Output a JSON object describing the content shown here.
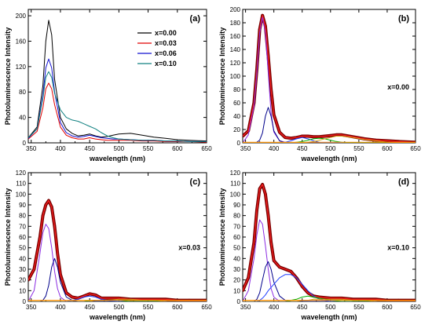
{
  "chart_data": [
    {
      "type": "line",
      "panel_label": "(a)",
      "xlabel": "wavelength (nm)",
      "ylabel": "Photoluminescence Intensity",
      "xlim": [
        345,
        650
      ],
      "ylim": [
        0,
        210
      ],
      "xticks": [
        350,
        400,
        450,
        500,
        550,
        600,
        650
      ],
      "yticks": [
        0,
        40,
        80,
        120,
        160,
        200
      ],
      "legend": "top-right",
      "x": [
        345,
        360,
        370,
        375,
        380,
        385,
        390,
        400,
        410,
        420,
        430,
        440,
        450,
        460,
        470,
        480,
        490,
        500,
        520,
        540,
        560,
        580,
        600,
        620,
        650
      ],
      "series": [
        {
          "name": "x=0.00",
          "color": "#000000",
          "legend": true,
          "values": [
            8,
            25,
            90,
            160,
            193,
            170,
            100,
            40,
            22,
            15,
            11,
            12,
            14,
            11,
            9,
            10,
            12,
            14,
            15,
            12,
            9,
            7,
            5,
            4,
            3
          ]
        },
        {
          "name": "x=0.03",
          "color": "#e00000",
          "legend": true,
          "values": [
            6,
            18,
            55,
            85,
            94,
            85,
            60,
            25,
            12,
            8,
            6,
            6,
            8,
            6,
            5,
            4,
            4,
            4,
            4,
            3,
            3,
            2,
            2,
            2,
            1
          ]
        },
        {
          "name": "x=0.06",
          "color": "#1010d0",
          "legend": true,
          "values": [
            7,
            22,
            75,
            118,
            132,
            118,
            80,
            32,
            16,
            11,
            9,
            10,
            12,
            10,
            8,
            7,
            6,
            6,
            5,
            4,
            4,
            3,
            3,
            2,
            2
          ]
        },
        {
          "name": "x=0.10",
          "color": "#108080",
          "legend": true,
          "values": [
            8,
            22,
            70,
            103,
            112,
            103,
            78,
            52,
            40,
            36,
            34,
            30,
            26,
            22,
            16,
            11,
            8,
            6,
            5,
            4,
            4,
            3,
            3,
            2,
            2
          ]
        }
      ]
    },
    {
      "type": "line",
      "panel_label": "(b)",
      "annotation": "x=0.00",
      "xlabel": "wavelength (nm)",
      "ylabel": "Photoluminescence Intensity",
      "xlim": [
        345,
        650
      ],
      "ylim": [
        0,
        200
      ],
      "xticks": [
        350,
        400,
        450,
        500,
        550,
        600,
        650
      ],
      "yticks": [
        0,
        20,
        40,
        60,
        80,
        100,
        120,
        140,
        160,
        180,
        200
      ],
      "x": [
        345,
        355,
        365,
        370,
        375,
        380,
        385,
        390,
        395,
        400,
        410,
        420,
        430,
        440,
        450,
        460,
        470,
        480,
        490,
        500,
        510,
        520,
        540,
        560,
        580,
        600,
        620,
        650
      ],
      "series": [
        {
          "name": "",
          "role": "data",
          "color": "#7a0000",
          "values": [
            10,
            18,
            60,
            110,
            170,
            191,
            175,
            130,
            80,
            42,
            16,
            8,
            7,
            8,
            10,
            10,
            9,
            9,
            10,
            11,
            12,
            12,
            9,
            6,
            4,
            3,
            2,
            1
          ]
        },
        {
          "name": "",
          "role": "fit-total",
          "color": "#ff2020",
          "values": [
            10,
            18,
            60,
            110,
            170,
            191,
            175,
            130,
            80,
            42,
            16,
            8,
            7,
            8,
            10,
            10,
            9,
            9,
            10,
            11,
            12,
            12,
            9,
            6,
            4,
            3,
            2,
            1
          ]
        },
        {
          "name": "",
          "role": "component",
          "color": "#8a2be2",
          "values": [
            0,
            12,
            55,
            104,
            165,
            188,
            165,
            105,
            45,
            16,
            3,
            1,
            0,
            0,
            0,
            0,
            0,
            0,
            0,
            0,
            0,
            0,
            0,
            0,
            0,
            0,
            0,
            0
          ]
        },
        {
          "name": "",
          "role": "component",
          "color": "#00008b",
          "values": [
            0,
            0,
            0,
            1,
            4,
            15,
            40,
            53,
            40,
            18,
            3,
            0,
            0,
            0,
            0,
            0,
            0,
            0,
            0,
            0,
            0,
            0,
            0,
            0,
            0,
            0,
            0,
            0
          ]
        },
        {
          "name": "",
          "role": "component",
          "color": "#2040ff",
          "values": [
            0,
            0,
            0,
            0,
            0,
            0,
            0,
            0,
            0,
            0,
            0,
            1,
            3,
            6,
            8,
            6,
            3,
            1,
            0,
            0,
            0,
            0,
            0,
            0,
            0,
            0,
            0,
            0
          ]
        },
        {
          "name": "",
          "role": "component",
          "color": "#00b000",
          "values": [
            0,
            0,
            0,
            0,
            0,
            0,
            0,
            0,
            0,
            0,
            0,
            0,
            0,
            1,
            2,
            4,
            6,
            7,
            6,
            4,
            2,
            1,
            0,
            0,
            0,
            0,
            0,
            0
          ]
        },
        {
          "name": "",
          "role": "component",
          "color": "#d4a017",
          "values": [
            0,
            0,
            0,
            0,
            0,
            0,
            0,
            0,
            0,
            0,
            0,
            0,
            0,
            0,
            0,
            1,
            2,
            4,
            6,
            8,
            10,
            10,
            8,
            5,
            3,
            1,
            0,
            0
          ]
        },
        {
          "name": "",
          "role": "baseline",
          "color": "#ff8c00",
          "values": [
            1,
            1,
            1,
            1,
            1,
            1,
            1,
            1,
            1,
            1,
            1,
            1,
            1,
            1,
            1,
            1,
            1,
            1,
            1,
            1,
            1,
            1,
            1,
            1,
            1,
            1,
            1,
            1
          ]
        }
      ]
    },
    {
      "type": "line",
      "panel_label": "(c)",
      "annotation": "x=0.03",
      "xlabel": "wavelength (nm)",
      "ylabel": "Photoluminescence Intensity",
      "xlim": [
        345,
        650
      ],
      "ylim": [
        0,
        120
      ],
      "xticks": [
        350,
        400,
        450,
        500,
        550,
        600,
        650
      ],
      "yticks": [
        0,
        10,
        20,
        30,
        40,
        50,
        60,
        70,
        80,
        90,
        100,
        110,
        120
      ],
      "x": [
        345,
        355,
        365,
        370,
        375,
        380,
        385,
        390,
        395,
        400,
        410,
        420,
        430,
        440,
        450,
        460,
        470,
        480,
        500,
        520,
        540,
        560,
        580,
        600,
        620,
        650
      ],
      "series": [
        {
          "name": "",
          "role": "data",
          "color": "#7a0000",
          "values": [
            20,
            30,
            60,
            80,
            90,
            94,
            88,
            70,
            45,
            25,
            8,
            4,
            3,
            5,
            7,
            6,
            3,
            3,
            3,
            2,
            2,
            2,
            2,
            1,
            1,
            1
          ]
        },
        {
          "name": "",
          "role": "fit-total",
          "color": "#ff2020",
          "values": [
            20,
            30,
            60,
            80,
            90,
            94,
            88,
            70,
            45,
            25,
            8,
            4,
            3,
            5,
            7,
            6,
            3,
            3,
            3,
            2,
            2,
            2,
            2,
            1,
            1,
            1
          ]
        },
        {
          "name": "",
          "role": "component",
          "color": "#8a2be2",
          "values": [
            0,
            10,
            45,
            64,
            72,
            68,
            50,
            28,
            12,
            4,
            0,
            0,
            0,
            0,
            0,
            0,
            0,
            0,
            0,
            0,
            0,
            0,
            0,
            0,
            0,
            0
          ]
        },
        {
          "name": "",
          "role": "component",
          "color": "#00008b",
          "values": [
            0,
            0,
            0,
            1,
            5,
            15,
            32,
            40,
            32,
            18,
            4,
            1,
            0,
            0,
            0,
            0,
            0,
            0,
            0,
            0,
            0,
            0,
            0,
            0,
            0,
            0
          ]
        },
        {
          "name": "",
          "role": "component",
          "color": "#2040ff",
          "values": [
            0,
            0,
            0,
            0,
            0,
            0,
            0,
            0,
            0,
            0,
            0,
            1,
            2,
            4,
            5,
            4,
            2,
            1,
            0,
            0,
            0,
            0,
            0,
            0,
            0,
            0
          ]
        },
        {
          "name": "",
          "role": "component",
          "color": "#00b000",
          "values": [
            0,
            0,
            0,
            0,
            0,
            0,
            0,
            0,
            0,
            0,
            0,
            0,
            0,
            0,
            1,
            1,
            1,
            1,
            1,
            0,
            0,
            0,
            0,
            0,
            0,
            0
          ]
        },
        {
          "name": "",
          "role": "component",
          "color": "#d4a017",
          "values": [
            0,
            0,
            0,
            0,
            0,
            0,
            0,
            0,
            0,
            0,
            0,
            0,
            0,
            0,
            0,
            1,
            1,
            1,
            2,
            2,
            1,
            1,
            0,
            0,
            0,
            0
          ]
        },
        {
          "name": "",
          "role": "baseline",
          "color": "#ff8c00",
          "values": [
            1,
            1,
            1,
            1,
            1,
            1,
            1,
            1,
            1,
            1,
            1,
            1,
            1,
            1,
            1,
            1,
            1,
            1,
            1,
            1,
            1,
            1,
            1,
            1,
            1,
            1
          ]
        }
      ]
    },
    {
      "type": "line",
      "panel_label": "(d)",
      "annotation": "x=0.10",
      "xlabel": "wavelength (nm)",
      "ylabel": "Photoluminescence Intensity",
      "xlim": [
        345,
        650
      ],
      "ylim": [
        0,
        120
      ],
      "xticks": [
        350,
        400,
        450,
        500,
        550,
        600,
        650
      ],
      "yticks": [
        0,
        10,
        20,
        30,
        40,
        50,
        60,
        70,
        80,
        90,
        100,
        110,
        120
      ],
      "x": [
        345,
        355,
        365,
        370,
        375,
        380,
        385,
        390,
        395,
        400,
        410,
        420,
        430,
        440,
        450,
        460,
        470,
        480,
        500,
        520,
        540,
        560,
        580,
        600,
        620,
        650
      ],
      "series": [
        {
          "name": "",
          "role": "data",
          "color": "#7a0000",
          "values": [
            10,
            22,
            55,
            85,
            105,
            109,
            100,
            80,
            55,
            38,
            32,
            30,
            28,
            22,
            14,
            8,
            5,
            4,
            3,
            3,
            2,
            2,
            2,
            1,
            1,
            1
          ]
        },
        {
          "name": "",
          "role": "fit-total",
          "color": "#ff2020",
          "values": [
            10,
            22,
            55,
            85,
            105,
            109,
            100,
            80,
            55,
            38,
            32,
            30,
            28,
            22,
            14,
            8,
            5,
            4,
            3,
            3,
            2,
            2,
            2,
            1,
            1,
            1
          ]
        },
        {
          "name": "",
          "role": "component",
          "color": "#8a2be2",
          "values": [
            0,
            10,
            40,
            62,
            76,
            72,
            52,
            30,
            12,
            4,
            0,
            0,
            0,
            0,
            0,
            0,
            0,
            0,
            0,
            0,
            0,
            0,
            0,
            0,
            0,
            0
          ]
        },
        {
          "name": "",
          "role": "component",
          "color": "#00008b",
          "values": [
            0,
            0,
            0,
            2,
            8,
            20,
            32,
            37,
            30,
            18,
            5,
            1,
            0,
            0,
            0,
            0,
            0,
            0,
            0,
            0,
            0,
            0,
            0,
            0,
            0,
            0
          ]
        },
        {
          "name": "",
          "role": "component",
          "color": "#2040ff",
          "values": [
            0,
            0,
            0,
            0,
            1,
            3,
            6,
            10,
            13,
            16,
            22,
            25,
            25,
            22,
            16,
            10,
            5,
            2,
            0,
            0,
            0,
            0,
            0,
            0,
            0,
            0
          ]
        },
        {
          "name": "",
          "role": "component",
          "color": "#00b000",
          "values": [
            0,
            0,
            0,
            0,
            0,
            0,
            0,
            0,
            0,
            0,
            0,
            0,
            1,
            2,
            4,
            5,
            4,
            3,
            1,
            0,
            0,
            0,
            0,
            0,
            0,
            0
          ]
        },
        {
          "name": "",
          "role": "component",
          "color": "#d4a017",
          "values": [
            0,
            0,
            0,
            0,
            0,
            0,
            0,
            0,
            0,
            0,
            0,
            0,
            0,
            0,
            1,
            1,
            2,
            2,
            2,
            2,
            1,
            1,
            0,
            0,
            0,
            0
          ]
        },
        {
          "name": "",
          "role": "baseline",
          "color": "#ff8c00",
          "values": [
            1,
            1,
            1,
            1,
            1,
            1,
            1,
            1,
            1,
            1,
            1,
            1,
            1,
            1,
            1,
            1,
            1,
            1,
            1,
            1,
            1,
            1,
            1,
            1,
            1,
            1
          ]
        }
      ]
    }
  ]
}
